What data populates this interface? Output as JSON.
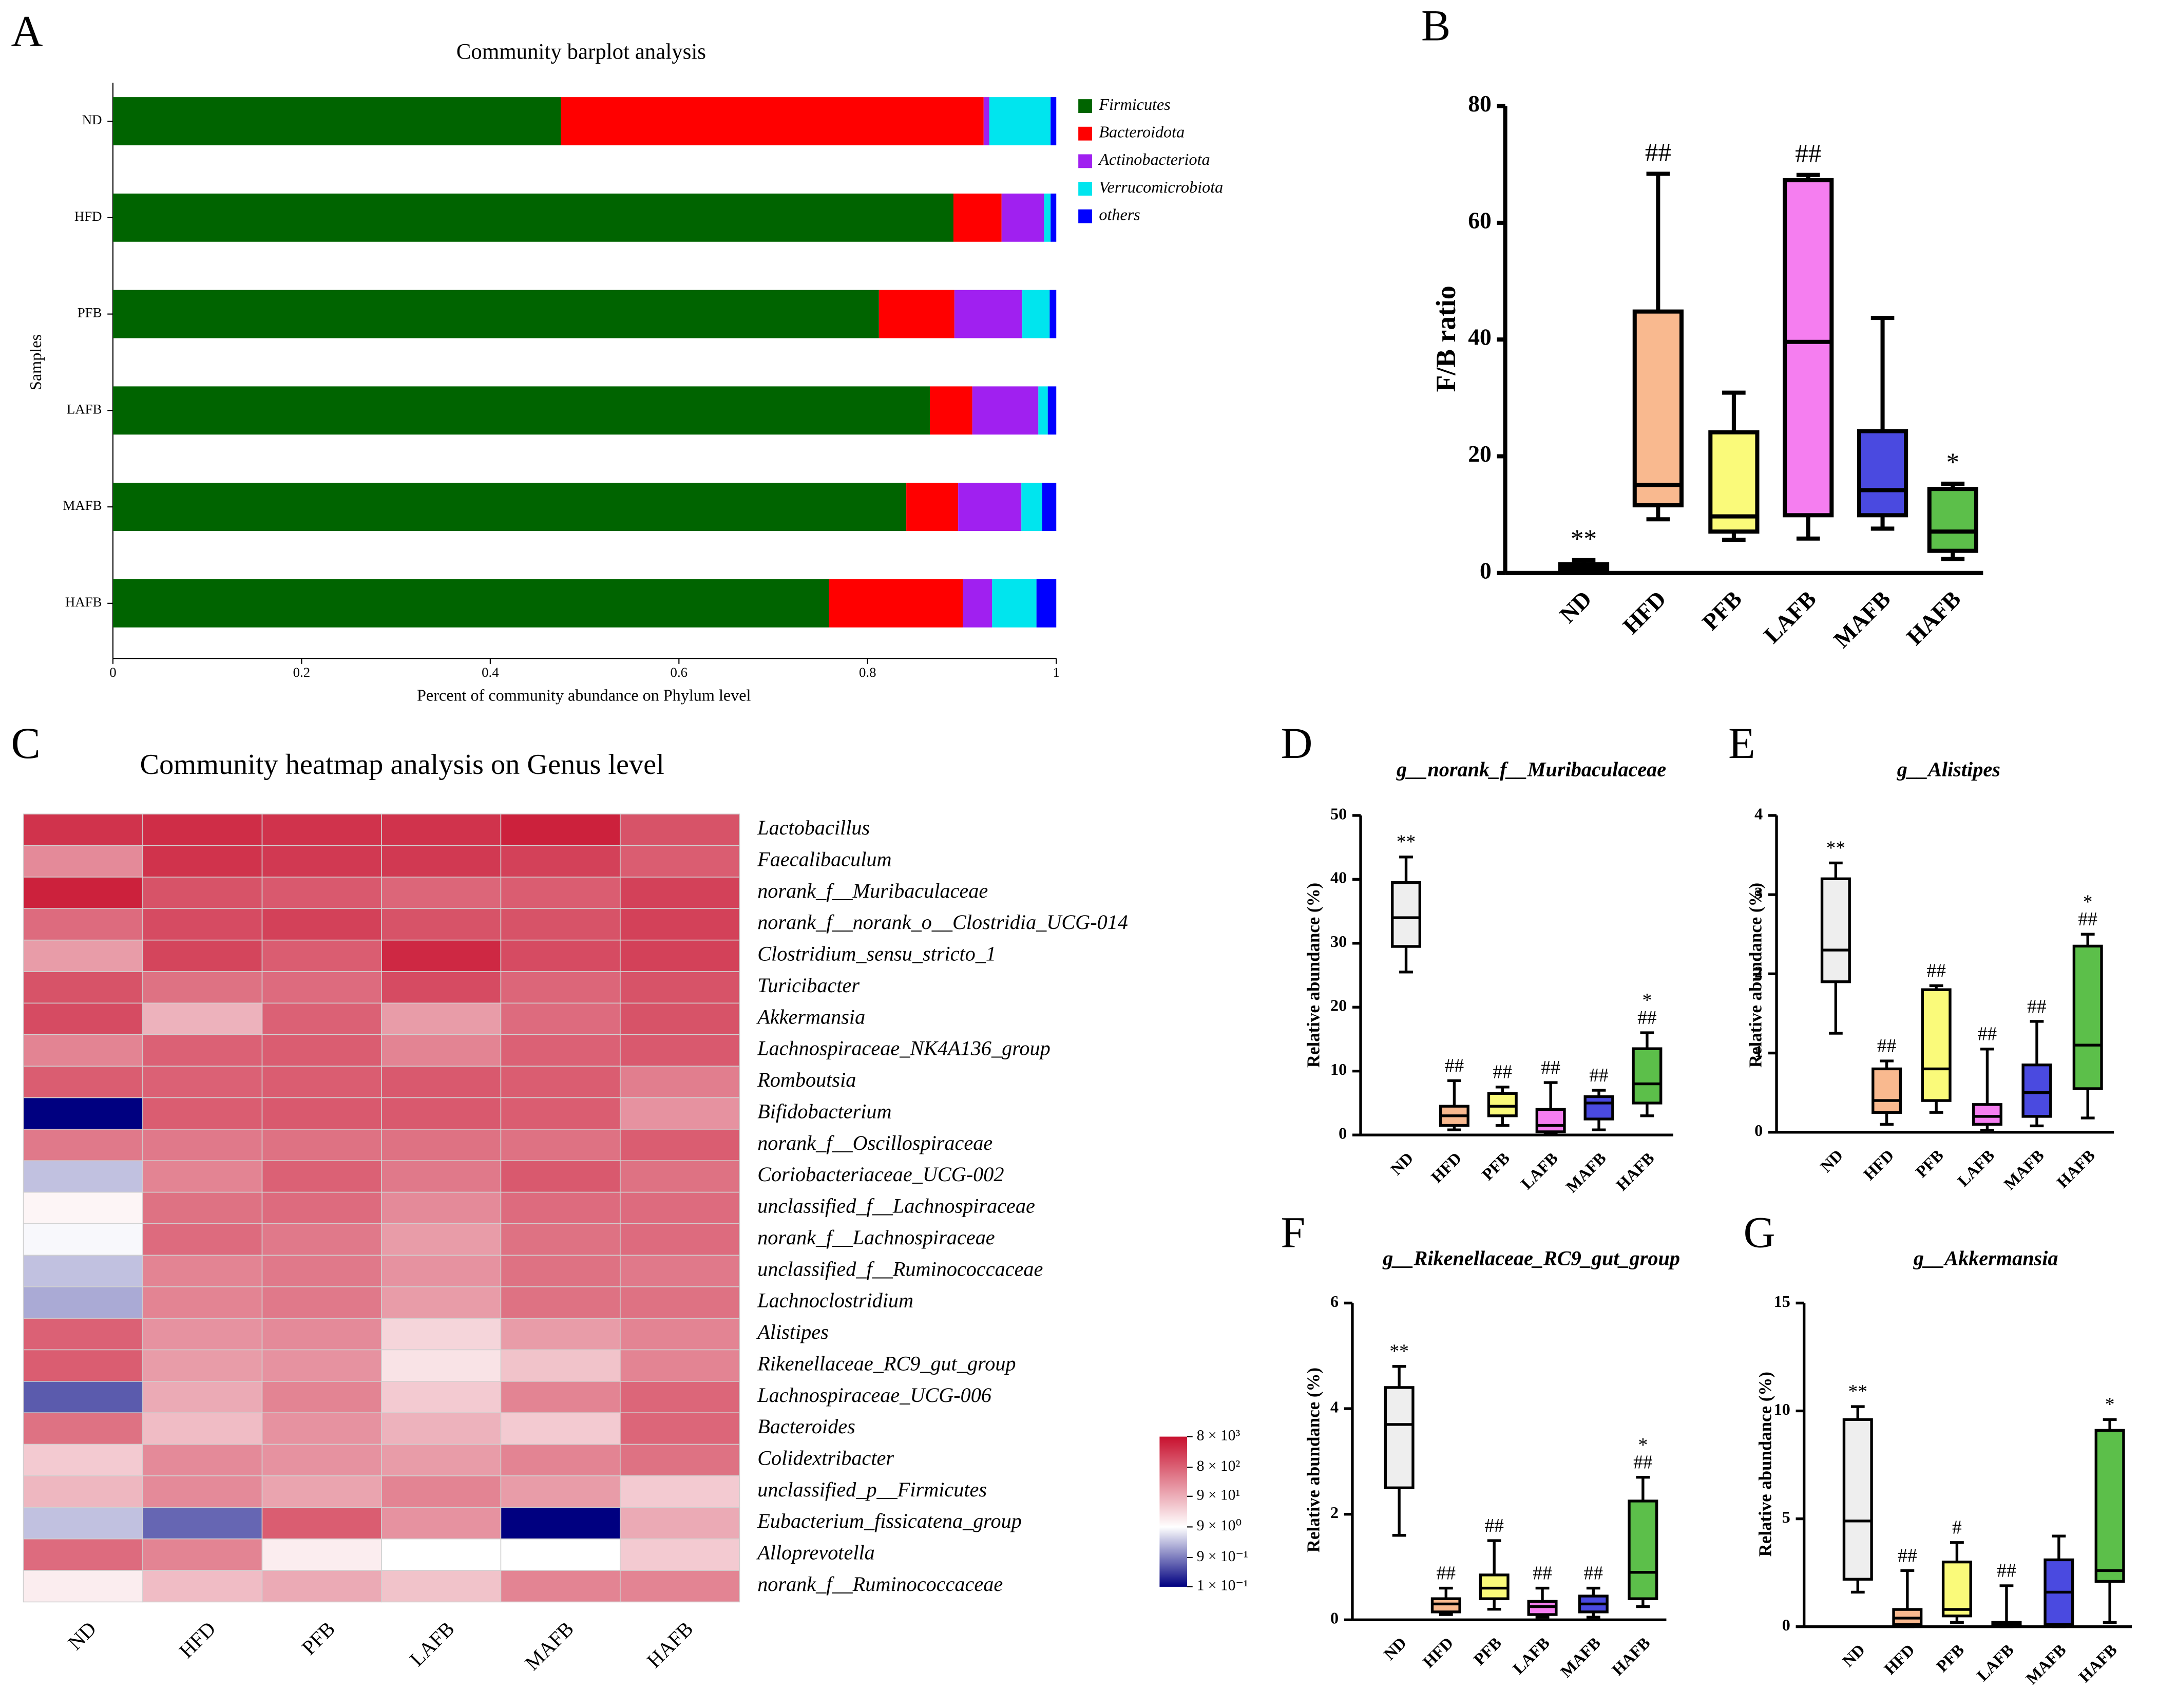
{
  "chart_data": [
    {
      "type": "bar",
      "orientation": "horizontal",
      "stacked": true,
      "panel": "A",
      "title": "Community barplot analysis",
      "xlabel": "Percent of community abundance on Phylum level",
      "ylabel": "Samples",
      "categories": [
        "ND",
        "HFD",
        "PFB",
        "LAFB",
        "MAFB",
        "HAFB"
      ],
      "series": [
        {
          "name": "Firmicutes",
          "color": "#006400",
          "values": [
            0.475,
            0.891,
            0.812,
            0.866,
            0.841,
            0.759
          ]
        },
        {
          "name": "Bacteroidota",
          "color": "#ff0000",
          "values": [
            0.448,
            0.051,
            0.08,
            0.045,
            0.055,
            0.142
          ]
        },
        {
          "name": "Actinobacteriota",
          "color": "#a020f0",
          "values": [
            0.006,
            0.045,
            0.072,
            0.07,
            0.067,
            0.031
          ]
        },
        {
          "name": "Verrucomicrobiota",
          "color": "#00e5ee",
          "values": [
            0.065,
            0.007,
            0.029,
            0.01,
            0.022,
            0.047
          ]
        },
        {
          "name": "others",
          "color": "#0000ff",
          "values": [
            0.006,
            0.006,
            0.007,
            0.009,
            0.015,
            0.021
          ]
        }
      ],
      "xlim": [
        0,
        1
      ],
      "xticks": [
        0,
        0.2,
        0.4,
        0.6,
        0.8,
        1
      ]
    },
    {
      "type": "box",
      "panel": "B",
      "ylabel": "F/B ratio",
      "categories": [
        "ND",
        "HFD",
        "PFB",
        "LAFB",
        "MAFB",
        "HAFB"
      ],
      "colors": [
        "#000000",
        "#f9b98f",
        "#fafa7a",
        "#f57ef0",
        "#4a4ae0",
        "#5cbf4a"
      ],
      "min": [
        0.3,
        9.2,
        5.7,
        5.9,
        7.6,
        2.4
      ],
      "q1": [
        0.5,
        11.6,
        7.1,
        9.9,
        9.9,
        3.8
      ],
      "median": [
        1,
        15.1,
        9.7,
        39.6,
        14.2,
        7.1
      ],
      "q3": [
        1.5,
        44.8,
        24.1,
        67.3,
        24.3,
        14.4
      ],
      "max": [
        2.2,
        68.4,
        30.9,
        68.2,
        43.7,
        15.3
      ],
      "annotations": [
        [
          "**"
        ],
        [
          "##"
        ],
        [],
        [
          "##"
        ],
        [],
        [
          "*"
        ]
      ],
      "ylim": [
        0,
        80
      ],
      "yticks": [
        0,
        20,
        40,
        60,
        80
      ]
    },
    {
      "type": "heatmap",
      "panel": "C",
      "title": "Community heatmap analysis on Genus level",
      "log_scale": true,
      "columns": [
        "ND",
        "HFD",
        "PFB",
        "LAFB",
        "MAFB",
        "HAFB"
      ],
      "rows": [
        "Lactobacillus",
        "Faecalibaculum",
        "norank_f__Muribaculaceae",
        "norank_f__norank_o__Clostridia_UCG-014",
        "Clostridium_sensu_stricto_1",
        "Turicibacter",
        "Akkermansia",
        "Lachnospiraceae_NK4A136_group",
        "Romboutsia",
        "Bifidobacterium",
        "norank_f__Oscillospiraceae",
        "Coriobacteriaceae_UCG-002",
        "unclassified_f__Lachnospiraceae",
        "norank_f__Lachnospiraceae",
        "unclassified_f__Ruminococcaceae",
        "Lachnoclostridium",
        "Alistipes",
        "Rikenellaceae_RC9_gut_group",
        "Lachnospiraceae_UCG-006",
        "Bacteroides",
        "Colidextribacter",
        "unclassified_p__Firmicutes",
        "Eubacterium_fissicatena_group",
        "Alloprevotella",
        "norank_f__Ruminococcaceae"
      ],
      "values": [
        [
          3000,
          3500,
          3000,
          3000,
          5000,
          1200
        ],
        [
          250,
          3000,
          2500,
          2500,
          2000,
          900
        ],
        [
          5000,
          1200,
          1000,
          700,
          900,
          2000
        ],
        [
          600,
          1500,
          2000,
          1200,
          1200,
          2000
        ],
        [
          150,
          1800,
          900,
          4000,
          1500,
          2000
        ],
        [
          1200,
          500,
          600,
          1500,
          700,
          1200
        ],
        [
          1500,
          80,
          800,
          150,
          600,
          1200
        ],
        [
          300,
          800,
          900,
          300,
          800,
          1000
        ],
        [
          900,
          800,
          900,
          1000,
          900,
          350
        ],
        [
          0.1,
          900,
          1000,
          1000,
          900,
          200
        ],
        [
          400,
          400,
          500,
          500,
          500,
          900
        ],
        [
          3,
          300,
          800,
          400,
          1000,
          500
        ],
        [
          12,
          500,
          600,
          250,
          600,
          600
        ],
        [
          8,
          600,
          400,
          150,
          500,
          600
        ],
        [
          3,
          300,
          400,
          200,
          500,
          400
        ],
        [
          2,
          300,
          400,
          150,
          500,
          500
        ],
        [
          800,
          200,
          250,
          30,
          150,
          300
        ],
        [
          900,
          150,
          200,
          20,
          50,
          300
        ],
        [
          0.5,
          100,
          300,
          40,
          300,
          700
        ],
        [
          500,
          60,
          200,
          80,
          40,
          700
        ],
        [
          40,
          250,
          200,
          150,
          300,
          500
        ],
        [
          70,
          250,
          120,
          300,
          150,
          40
        ],
        [
          3,
          0.6,
          900,
          200,
          0.1,
          100
        ],
        [
          600,
          300,
          15,
          9,
          9,
          40
        ],
        [
          15,
          60,
          100,
          50,
          300,
          300
        ]
      ],
      "clim": [
        0.1,
        8000
      ],
      "colors": [
        "#000080",
        "#ffffff",
        "#c8102e"
      ],
      "colorbar_ticks": [
        {
          "value": 8000,
          "label": "8 × 10³"
        },
        {
          "value": 800,
          "label": "8 × 10²"
        },
        {
          "value": 90,
          "label": "9 × 10¹"
        },
        {
          "value": 9,
          "label": "9 × 10⁰"
        },
        {
          "value": 0.9,
          "label": "9 × 10⁻¹"
        },
        {
          "value": 0.1,
          "label": "1 × 10⁻¹"
        }
      ]
    },
    {
      "type": "box",
      "panel": "D",
      "title": "g__norank_f__Muribaculaceae",
      "ylabel": "Relative abundance (%)",
      "categories": [
        "ND",
        "HFD",
        "PFB",
        "LAFB",
        "MAFB",
        "HAFB"
      ],
      "colors": [
        "#eeeeee",
        "#f9b98f",
        "#fafa7a",
        "#f57ef0",
        "#4a4ae0",
        "#5cbf4a"
      ],
      "min": [
        25.5,
        0.8,
        1.5,
        0.2,
        0.8,
        3
      ],
      "q1": [
        29.5,
        1.5,
        3,
        0.5,
        2.5,
        5
      ],
      "median": [
        34,
        3,
        4.5,
        1.5,
        5,
        8
      ],
      "q3": [
        39.5,
        4.5,
        6.5,
        4,
        6,
        13.5
      ],
      "max": [
        43.5,
        8.5,
        7.5,
        8.2,
        7,
        16
      ],
      "annotations": [
        [
          "**"
        ],
        [
          "##"
        ],
        [
          "##"
        ],
        [
          "##"
        ],
        [
          "##"
        ],
        [
          "*",
          "##"
        ]
      ],
      "ylim": [
        0,
        50
      ],
      "yticks": [
        0,
        10,
        20,
        30,
        40,
        50
      ]
    },
    {
      "type": "box",
      "panel": "E",
      "title": "g__Alistipes",
      "ylabel": "Relative abundance (%)",
      "categories": [
        "ND",
        "HFD",
        "PFB",
        "LAFB",
        "MAFB",
        "HAFB"
      ],
      "colors": [
        "#eeeeee",
        "#f9b98f",
        "#fafa7a",
        "#f57ef0",
        "#4a4ae0",
        "#5cbf4a"
      ],
      "min": [
        1.25,
        0.1,
        0.25,
        0.02,
        0.08,
        0.18
      ],
      "q1": [
        1.9,
        0.25,
        0.4,
        0.1,
        0.2,
        0.55
      ],
      "median": [
        2.3,
        0.4,
        0.8,
        0.2,
        0.5,
        1.1
      ],
      "q3": [
        3.2,
        0.8,
        1.8,
        0.35,
        0.85,
        2.35
      ],
      "max": [
        3.4,
        0.9,
        1.85,
        1.05,
        1.4,
        2.5
      ],
      "annotations": [
        [
          "**"
        ],
        [
          "##"
        ],
        [
          "##"
        ],
        [
          "##"
        ],
        [
          "##"
        ],
        [
          "*",
          "##"
        ]
      ],
      "ylim": [
        0,
        4
      ],
      "yticks": [
        0,
        1,
        2,
        3,
        4
      ]
    },
    {
      "type": "box",
      "panel": "F",
      "title": "g__Rikenellaceae_RC9_gut_group",
      "ylabel": "Relative abundance (%)",
      "categories": [
        "ND",
        "HFD",
        "PFB",
        "LAFB",
        "MAFB",
        "HAFB"
      ],
      "colors": [
        "#eeeeee",
        "#f9b98f",
        "#fafa7a",
        "#f57ef0",
        "#4a4ae0",
        "#5cbf4a"
      ],
      "min": [
        1.6,
        0.1,
        0.2,
        0.05,
        0.05,
        0.25
      ],
      "q1": [
        2.5,
        0.15,
        0.4,
        0.1,
        0.15,
        0.4
      ],
      "median": [
        3.7,
        0.3,
        0.6,
        0.25,
        0.3,
        0.9
      ],
      "q3": [
        4.4,
        0.4,
        0.85,
        0.35,
        0.45,
        2.25
      ],
      "max": [
        4.8,
        0.6,
        1.5,
        0.6,
        0.6,
        2.7
      ],
      "annotations": [
        [
          "**"
        ],
        [
          "##"
        ],
        [
          "##"
        ],
        [
          "##"
        ],
        [
          "##"
        ],
        [
          "*",
          "##"
        ]
      ],
      "ylim": [
        0,
        6
      ],
      "yticks": [
        0,
        2,
        4,
        6
      ]
    },
    {
      "type": "box",
      "panel": "G",
      "title": "g__Akkermansia",
      "ylabel": "Relative abundance (%)",
      "categories": [
        "ND",
        "HFD",
        "PFB",
        "LAFB",
        "MAFB",
        "HAFB"
      ],
      "colors": [
        "#eeeeee",
        "#f9b98f",
        "#fafa7a",
        "#f57ef0",
        "#4a4ae0",
        "#5cbf4a"
      ],
      "min": [
        1.6,
        0,
        0.2,
        0,
        0,
        0.2
      ],
      "q1": [
        2.2,
        0.1,
        0.5,
        0.05,
        0.1,
        2.1
      ],
      "median": [
        4.9,
        0.4,
        0.8,
        0.1,
        1.6,
        2.6
      ],
      "q3": [
        9.6,
        0.8,
        3,
        0.2,
        3.1,
        9.1
      ],
      "max": [
        10.2,
        2.6,
        3.9,
        1.9,
        4.2,
        9.6
      ],
      "annotations": [
        [
          "**"
        ],
        [
          "##"
        ],
        [
          "#"
        ],
        [
          "##"
        ],
        [],
        [
          "*"
        ]
      ],
      "ylim": [
        0,
        15
      ],
      "yticks": [
        0,
        5,
        10,
        15
      ]
    }
  ]
}
